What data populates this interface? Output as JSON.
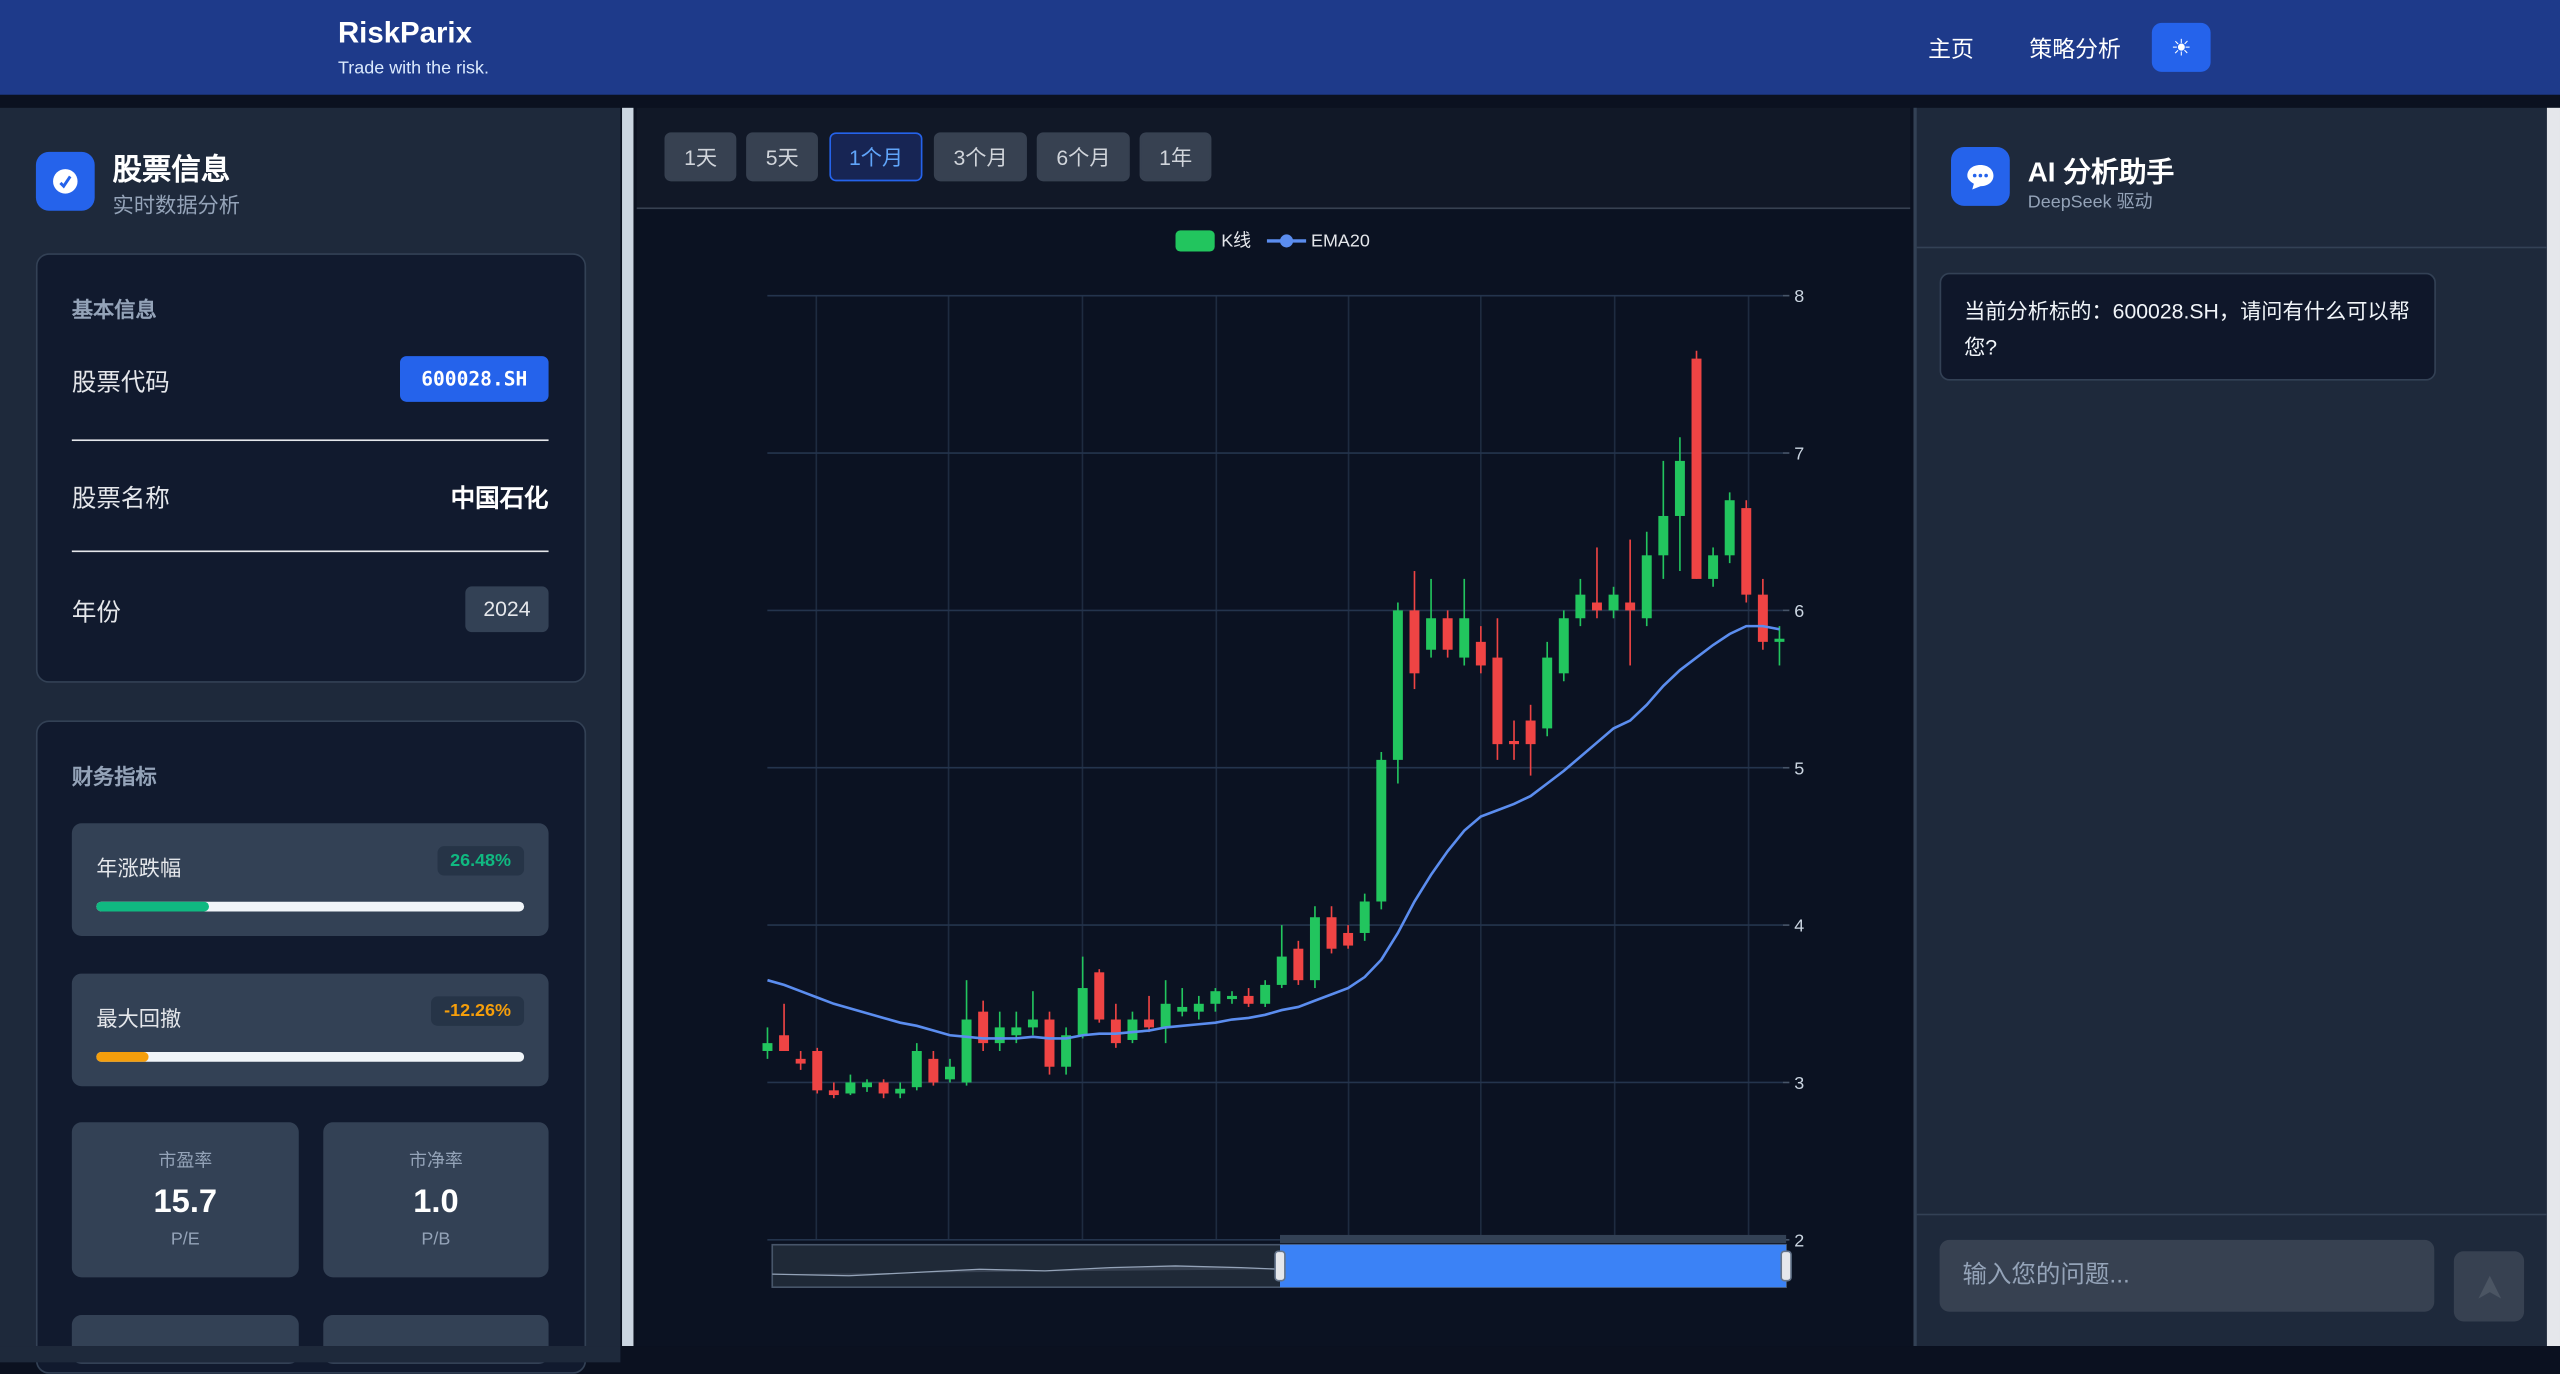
{
  "header": {
    "brand": "RiskParix",
    "tagline": "Trade with the risk.",
    "nav": [
      "主页",
      "策略分析"
    ]
  },
  "stock_panel": {
    "title": "股票信息",
    "subtitle": "实时数据分析",
    "basic": {
      "heading": "基本信息",
      "rows": [
        {
          "label": "股票代码",
          "value": "600028.SH"
        },
        {
          "label": "股票名称",
          "value": "中国石化"
        },
        {
          "label": "年份",
          "value": "2024"
        }
      ]
    },
    "financial": {
      "heading": "财务指标",
      "bars": [
        {
          "label": "年涨跌幅",
          "value": 26.48,
          "value_label": "26.48%",
          "color": "#10b981"
        },
        {
          "label": "最大回撤",
          "value": -12.26,
          "value_label": "-12.26%",
          "color": "#f59e0b"
        }
      ],
      "metrics": [
        {
          "label": "市盈率",
          "value": "15.7",
          "unit": "P/E"
        },
        {
          "label": "市净率",
          "value": "1.0",
          "unit": "P/B"
        }
      ]
    }
  },
  "range_buttons": {
    "options": [
      "1天",
      "5天",
      "1个月",
      "3个月",
      "6个月",
      "1年"
    ],
    "selected": "1个月"
  },
  "chart_data": {
    "type": "candlestick",
    "series": [
      {
        "name": "K线",
        "color": "#22c55e",
        "down_color": "#ef4444",
        "open": [
          3.2,
          3.3,
          3.15,
          3.2,
          2.95,
          2.93,
          2.97,
          3.0,
          2.93,
          2.97,
          3.15,
          3.02,
          3.0,
          3.45,
          3.25,
          3.3,
          3.35,
          3.4,
          3.1,
          3.3,
          3.7,
          3.4,
          3.27,
          3.4,
          3.35,
          3.45,
          3.45,
          3.5,
          3.53,
          3.55,
          3.5,
          3.62,
          3.85,
          3.65,
          4.05,
          3.95,
          3.95,
          4.15,
          5.05,
          6.0,
          5.75,
          5.95,
          5.7,
          5.8,
          5.7,
          5.17,
          5.3,
          5.25,
          5.6,
          5.95,
          6.05,
          6.0,
          6.05,
          5.95,
          6.35,
          6.6,
          7.6,
          6.2,
          6.35,
          6.65,
          6.1,
          5.8
        ],
        "high": [
          3.35,
          3.5,
          3.2,
          3.22,
          3.0,
          3.05,
          3.02,
          3.02,
          3.0,
          3.25,
          3.2,
          3.15,
          3.65,
          3.52,
          3.45,
          3.45,
          3.58,
          3.45,
          3.35,
          3.8,
          3.72,
          3.5,
          3.45,
          3.55,
          3.65,
          3.6,
          3.55,
          3.6,
          3.58,
          3.6,
          3.65,
          4.0,
          3.9,
          4.12,
          4.12,
          4.0,
          4.2,
          5.1,
          6.05,
          6.25,
          6.2,
          6.0,
          6.2,
          5.9,
          5.95,
          5.3,
          5.4,
          5.8,
          6.0,
          6.2,
          6.4,
          6.15,
          6.45,
          6.5,
          6.95,
          7.1,
          7.65,
          6.4,
          6.75,
          6.7,
          6.2,
          5.9
        ],
        "low": [
          3.15,
          3.2,
          3.08,
          2.93,
          2.9,
          2.92,
          2.94,
          2.9,
          2.9,
          2.95,
          2.98,
          3.0,
          2.98,
          3.2,
          3.2,
          3.25,
          3.3,
          3.05,
          3.05,
          3.28,
          3.38,
          3.22,
          3.25,
          3.32,
          3.25,
          3.42,
          3.4,
          3.45,
          3.5,
          3.48,
          3.48,
          3.6,
          3.62,
          3.6,
          3.82,
          3.85,
          3.9,
          4.1,
          4.9,
          5.5,
          5.7,
          5.7,
          5.65,
          5.6,
          5.05,
          5.05,
          4.95,
          5.2,
          5.55,
          5.9,
          5.95,
          5.95,
          5.65,
          5.9,
          6.2,
          6.25,
          6.2,
          6.15,
          6.3,
          6.05,
          5.75,
          5.65
        ],
        "close": [
          3.25,
          3.2,
          3.12,
          2.95,
          2.92,
          3.0,
          3.0,
          2.93,
          2.96,
          3.2,
          3.0,
          3.1,
          3.4,
          3.25,
          3.35,
          3.35,
          3.4,
          3.1,
          3.3,
          3.6,
          3.4,
          3.25,
          3.4,
          3.35,
          3.5,
          3.48,
          3.5,
          3.58,
          3.55,
          3.5,
          3.62,
          3.8,
          3.65,
          4.05,
          3.85,
          3.87,
          4.15,
          5.05,
          6.0,
          5.6,
          5.95,
          5.75,
          5.95,
          5.65,
          5.15,
          5.15,
          5.15,
          5.7,
          5.95,
          6.1,
          6.0,
          6.1,
          6.0,
          6.35,
          6.6,
          6.95,
          6.2,
          6.35,
          6.7,
          6.1,
          5.8,
          5.82
        ]
      },
      {
        "name": "EMA20",
        "color": "#5b8def",
        "values": [
          3.65,
          3.62,
          3.58,
          3.54,
          3.5,
          3.47,
          3.44,
          3.41,
          3.38,
          3.36,
          3.33,
          3.3,
          3.29,
          3.28,
          3.28,
          3.28,
          3.29,
          3.28,
          3.28,
          3.3,
          3.31,
          3.31,
          3.32,
          3.33,
          3.35,
          3.36,
          3.37,
          3.38,
          3.4,
          3.41,
          3.43,
          3.46,
          3.48,
          3.52,
          3.56,
          3.6,
          3.67,
          3.78,
          3.95,
          4.15,
          4.32,
          4.47,
          4.6,
          4.69,
          4.73,
          4.77,
          4.82,
          4.9,
          4.98,
          5.07,
          5.16,
          5.25,
          5.3,
          5.4,
          5.52,
          5.62,
          5.7,
          5.78,
          5.85,
          5.9,
          5.9,
          5.88
        ]
      }
    ],
    "ylim": [
      2,
      8
    ],
    "yticks": [
      2,
      3,
      4,
      5,
      6,
      7,
      8
    ],
    "grid": true
  },
  "assistant": {
    "title": "AI 分析助手",
    "subtitle": "DeepSeek 驱动",
    "messages": [
      "当前分析标的：600028.SH，请问有什么可以帮您?"
    ],
    "input_placeholder": "输入您的问题..."
  }
}
